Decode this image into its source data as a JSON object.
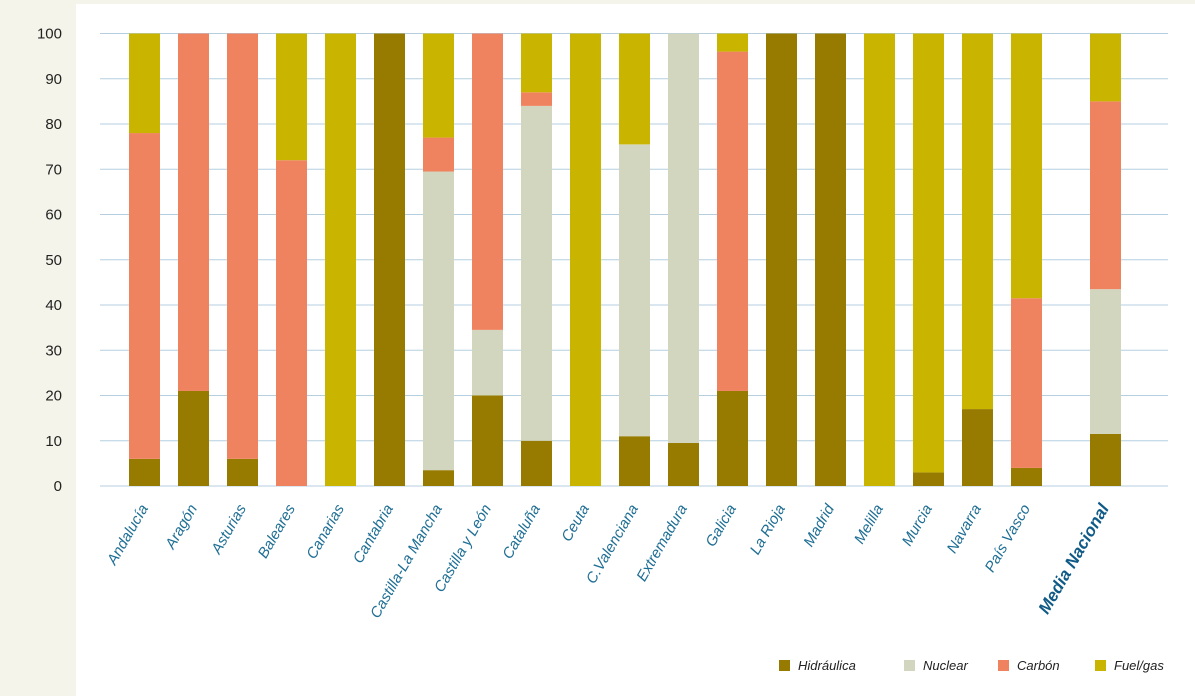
{
  "chart_data": {
    "type": "bar",
    "stacked": true,
    "categories": [
      "Andalucía",
      "Aragón",
      "Asturias",
      "Baleares",
      "Canarias",
      "Cantabria",
      "Castilla-La Mancha",
      "Castilla y León",
      "Cataluña",
      "Ceuta",
      "C.Valenciana",
      "Extremadura",
      "Galicia",
      "La Rioja",
      "Madrid",
      "Melilla",
      "Murcia",
      "Navarra",
      "País Vasco",
      "Media Nacional"
    ],
    "highlight_category": "Media Nacional",
    "ylim": [
      0,
      100
    ],
    "yticks": [
      0,
      10,
      20,
      30,
      40,
      50,
      60,
      70,
      80,
      90,
      100
    ],
    "grid": true,
    "legend_position": "bottom-right",
    "series": [
      {
        "name": "Hidráulica",
        "color": "#977b00",
        "values": [
          6,
          21,
          6,
          0,
          0,
          100,
          3.5,
          20,
          10,
          0,
          11,
          9.5,
          21,
          100,
          100,
          0,
          3,
          17,
          4,
          11.5
        ]
      },
      {
        "name": "Nuclear",
        "color": "#d3d6be",
        "values": [
          0,
          0,
          0,
          0,
          0,
          0,
          66,
          14.5,
          74,
          0,
          64.5,
          90.5,
          0,
          0,
          0,
          0,
          0,
          0,
          0,
          32
        ]
      },
      {
        "name": "Carbón",
        "color": "#ef8360",
        "values": [
          72,
          79,
          94,
          72,
          0,
          0,
          7.5,
          65.5,
          3,
          0,
          0,
          0,
          75,
          0,
          0,
          0,
          0,
          0,
          37.5,
          41.5
        ]
      },
      {
        "name": "Fuel/gas",
        "color": "#c9b500",
        "values": [
          22,
          0,
          0,
          28,
          100,
          0,
          23,
          0,
          13,
          100,
          24.5,
          0,
          4,
          0,
          0,
          100,
          97,
          83,
          58.5,
          15
        ]
      }
    ]
  },
  "colors": {
    "grid": "#b5cfe0",
    "axis_text": "#222222",
    "category_text": "#1e6e94",
    "highlight_text": "#0f5a86"
  }
}
